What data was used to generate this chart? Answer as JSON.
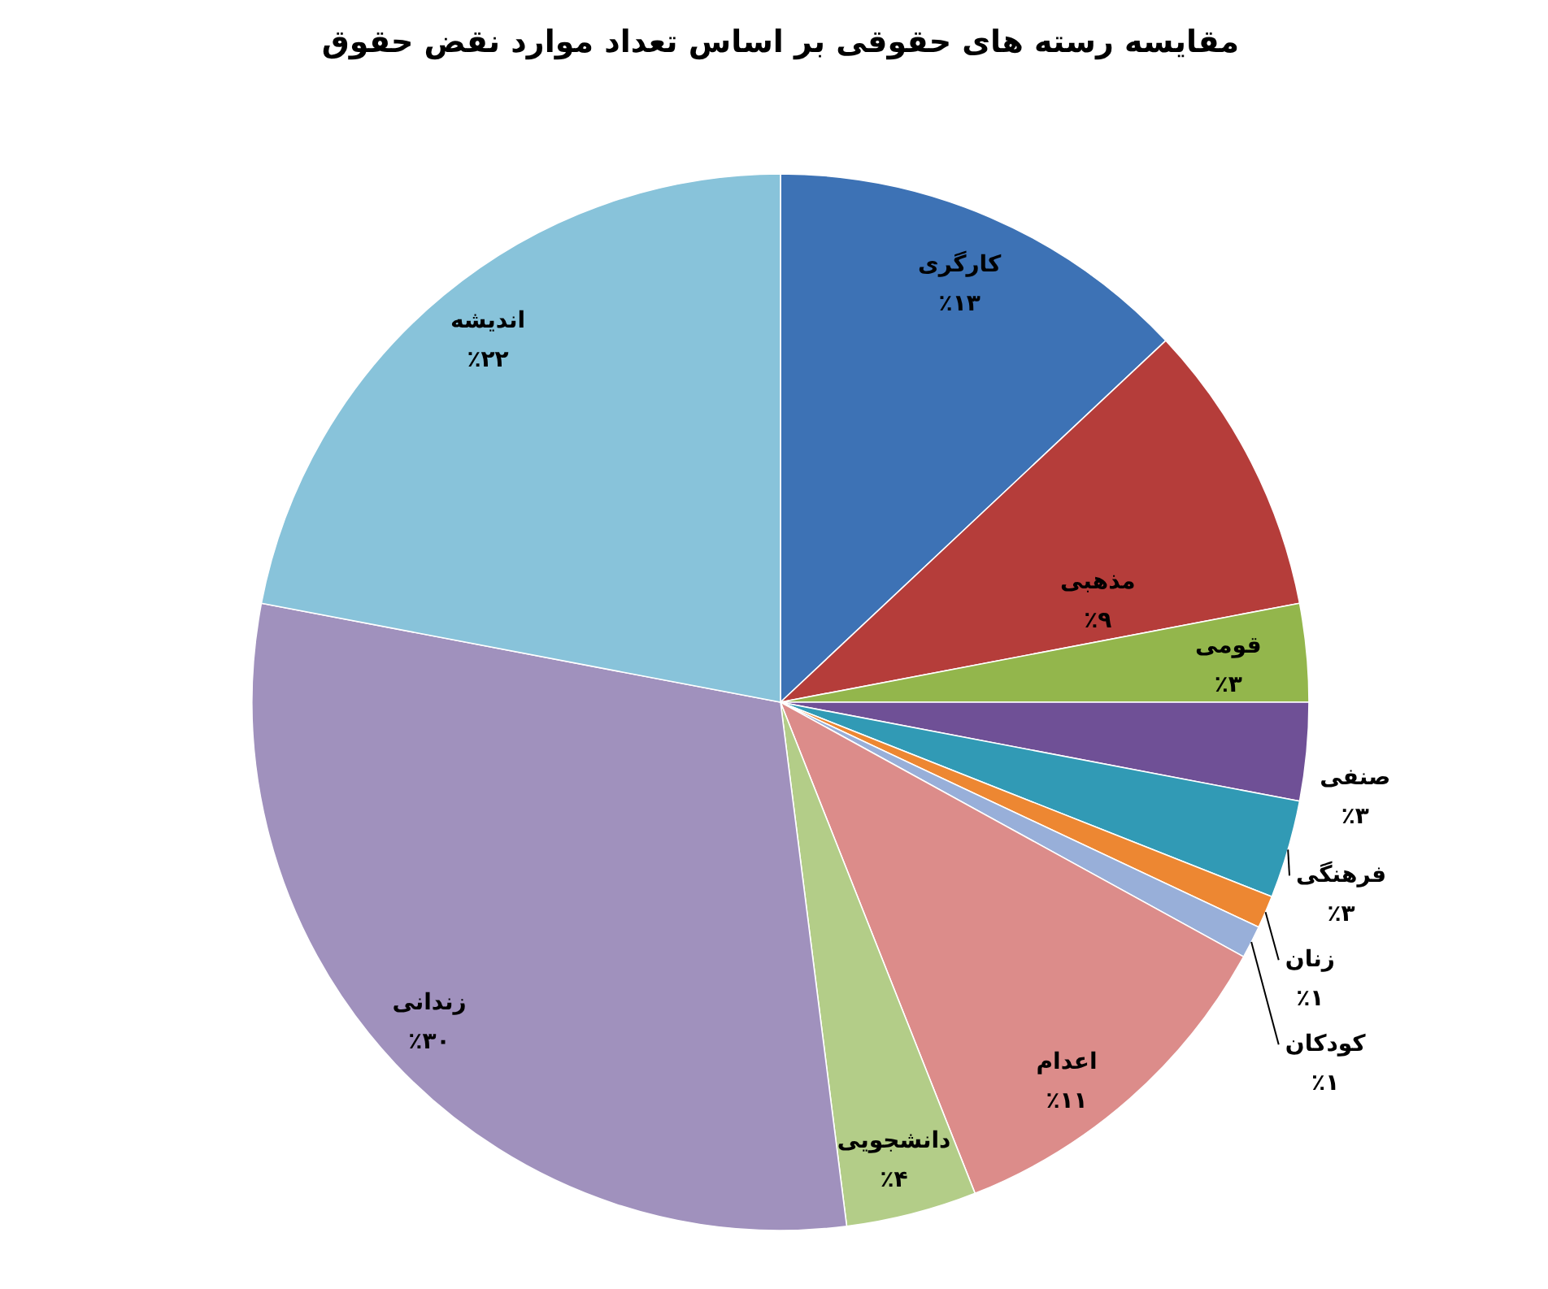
{
  "chart_data": {
    "type": "pie",
    "title": "مقایسه رسته های حقوقی بر اساس تعداد موارد نقض حقوق",
    "categories": [
      "کارگری",
      "مذهبی",
      "قومی",
      "صنفی",
      "فرهنگی",
      "زنان",
      "کودکان",
      "اعدام",
      "دانشجویی",
      "زندانی",
      "اندیشه"
    ],
    "values": [
      13,
      9,
      3,
      3,
      3,
      1,
      1,
      11,
      4,
      30,
      22
    ],
    "colors": [
      "#3d72b5",
      "#b53d3a",
      "#93b64c",
      "#6f5096",
      "#319ab5",
      "#ed8732",
      "#98afd9",
      "#dc8c8a",
      "#b3cd88",
      "#a091bd",
      "#88c3da"
    ],
    "value_labels": [
      "٪۱۳",
      "٪۹",
      "٪۳",
      "٪۳",
      "٪۳",
      "٪۱",
      "٪۱",
      "٪۱۱",
      "٪۴",
      "٪۳۰",
      "٪۲۲"
    ]
  }
}
